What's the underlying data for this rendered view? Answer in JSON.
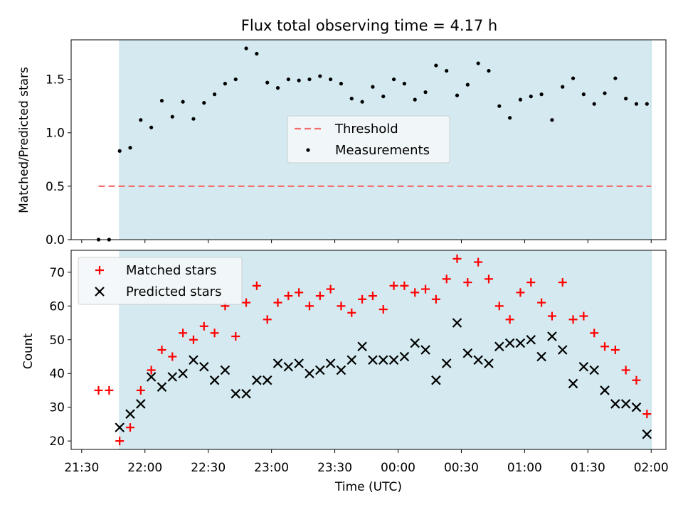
{
  "title": "Flux total observing time = 4.17 h",
  "colors": {
    "observing_band": "#d4eaf0",
    "threshold": "#f47070",
    "measurements": "#000000",
    "matched": "#ff0000",
    "predicted": "#000000"
  },
  "chart_data": [
    {
      "type": "scatter",
      "ylabel": "Matched/Predicted stars",
      "ylim": [
        0.0,
        1.87
      ],
      "yticks": [
        "0.0",
        "0.5",
        "1.0",
        "1.5"
      ],
      "ytick_values": [
        0.0,
        0.5,
        1.0,
        1.5
      ],
      "legend": {
        "placement": "center",
        "entries": [
          "Threshold",
          "Measurements"
        ]
      },
      "observing_window": [
        "21:48",
        "02:00"
      ],
      "threshold": {
        "name": "Threshold",
        "value": 0.5,
        "x_range": [
          "21:38",
          "02:00"
        ]
      },
      "series": [
        {
          "name": "Measurements",
          "x": [
            "21:38",
            "21:43",
            "21:48",
            "21:53",
            "21:58",
            "22:03",
            "22:08",
            "22:13",
            "22:18",
            "22:23",
            "22:28",
            "22:33",
            "22:38",
            "22:43",
            "22:48",
            "22:53",
            "22:58",
            "23:03",
            "23:08",
            "23:13",
            "23:18",
            "23:23",
            "23:28",
            "23:33",
            "23:38",
            "23:43",
            "23:48",
            "23:53",
            "23:58",
            "00:03",
            "00:08",
            "00:13",
            "00:18",
            "00:23",
            "00:28",
            "00:33",
            "00:38",
            "00:43",
            "00:48",
            "00:53",
            "00:58",
            "01:03",
            "01:08",
            "01:13",
            "01:18",
            "01:23",
            "01:28",
            "01:33",
            "01:38",
            "01:43",
            "01:48",
            "01:53",
            "01:58"
          ],
          "y": [
            0.0,
            0.0,
            0.83,
            0.86,
            1.12,
            1.05,
            1.3,
            1.15,
            1.29,
            1.13,
            1.28,
            1.36,
            1.46,
            1.5,
            1.79,
            1.74,
            1.47,
            1.42,
            1.5,
            1.49,
            1.5,
            1.53,
            1.5,
            1.46,
            1.32,
            1.29,
            1.43,
            1.34,
            1.5,
            1.46,
            1.31,
            1.38,
            1.63,
            1.58,
            1.35,
            1.45,
            1.65,
            1.58,
            1.25,
            1.14,
            1.31,
            1.34,
            1.36,
            1.12,
            1.43,
            1.51,
            1.36,
            1.27,
            1.37,
            1.51,
            1.32,
            1.27,
            1.27
          ]
        }
      ]
    },
    {
      "type": "scatter",
      "xlabel": "Time (UTC)",
      "ylabel": "Count",
      "ylim": [
        17.5,
        76.5
      ],
      "yticks": [
        "20",
        "30",
        "40",
        "50",
        "60",
        "70"
      ],
      "ytick_values": [
        20,
        30,
        40,
        50,
        60,
        70
      ],
      "xlim": [
        "21:25",
        "02:07"
      ],
      "xticks": [
        "21:30",
        "22:00",
        "22:30",
        "23:00",
        "23:30",
        "00:00",
        "00:30",
        "01:00",
        "01:30",
        "02:00"
      ],
      "legend": {
        "placement": "upper left",
        "entries": [
          "Matched stars",
          "Predicted stars"
        ]
      },
      "observing_window": [
        "21:48",
        "02:00"
      ],
      "series": [
        {
          "name": "Matched stars",
          "marker": "+",
          "x": [
            "21:38",
            "21:43",
            "21:48",
            "21:53",
            "21:58",
            "22:03",
            "22:08",
            "22:13",
            "22:18",
            "22:23",
            "22:28",
            "22:33",
            "22:38",
            "22:43",
            "22:48",
            "22:53",
            "22:58",
            "23:03",
            "23:08",
            "23:13",
            "23:18",
            "23:23",
            "23:28",
            "23:33",
            "23:38",
            "23:43",
            "23:48",
            "23:53",
            "23:58",
            "00:03",
            "00:08",
            "00:13",
            "00:18",
            "00:23",
            "00:28",
            "00:33",
            "00:38",
            "00:43",
            "00:48",
            "00:53",
            "00:58",
            "01:03",
            "01:08",
            "01:13",
            "01:18",
            "01:23",
            "01:28",
            "01:33",
            "01:38",
            "01:43",
            "01:48",
            "01:53",
            "01:58"
          ],
          "y": [
            35,
            35,
            20,
            24,
            35,
            41,
            47,
            45,
            52,
            50,
            54,
            52,
            60,
            51,
            61,
            66,
            56,
            61,
            63,
            64,
            60,
            63,
            65,
            60,
            58,
            62,
            63,
            59,
            66,
            66,
            64,
            65,
            62,
            68,
            74,
            67,
            73,
            68,
            60,
            56,
            64,
            67,
            61,
            57,
            67,
            56,
            57,
            52,
            48,
            47,
            41,
            38,
            28
          ]
        },
        {
          "name": "Predicted stars",
          "marker": "x",
          "x": [
            "21:48",
            "21:53",
            "21:58",
            "22:03",
            "22:08",
            "22:13",
            "22:18",
            "22:23",
            "22:28",
            "22:33",
            "22:38",
            "22:43",
            "22:48",
            "22:53",
            "22:58",
            "23:03",
            "23:08",
            "23:13",
            "23:18",
            "23:23",
            "23:28",
            "23:33",
            "23:38",
            "23:43",
            "23:48",
            "23:53",
            "23:58",
            "00:03",
            "00:08",
            "00:13",
            "00:18",
            "00:23",
            "00:28",
            "00:33",
            "00:38",
            "00:43",
            "00:48",
            "00:53",
            "00:58",
            "01:03",
            "01:08",
            "01:13",
            "01:18",
            "01:23",
            "01:28",
            "01:33",
            "01:38",
            "01:43",
            "01:48",
            "01:53",
            "01:58"
          ],
          "y": [
            24,
            28,
            31,
            39,
            36,
            39,
            40,
            44,
            42,
            38,
            41,
            34,
            34,
            38,
            38,
            43,
            42,
            43,
            40,
            41,
            43,
            41,
            44,
            48,
            44,
            44,
            44,
            45,
            49,
            47,
            38,
            43,
            55,
            46,
            44,
            43,
            48,
            49,
            49,
            50,
            45,
            51,
            47,
            37,
            42,
            41,
            35,
            31,
            31,
            30,
            22
          ]
        }
      ]
    }
  ]
}
